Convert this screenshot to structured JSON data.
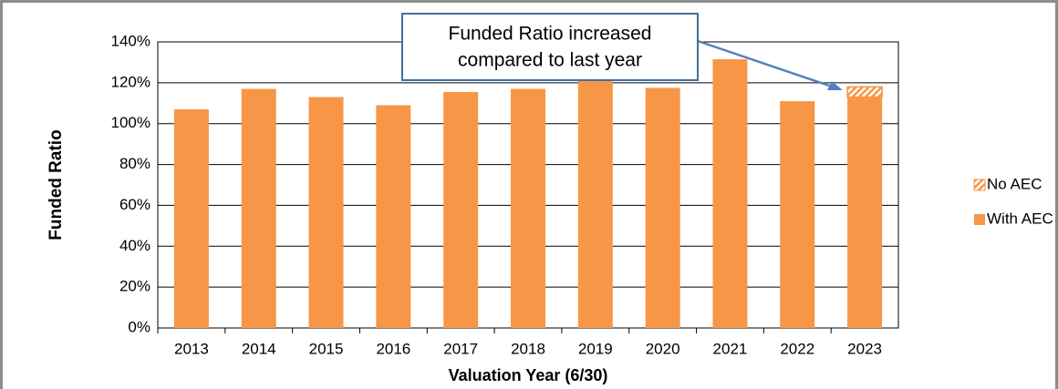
{
  "chart_data": {
    "type": "stacked_bar",
    "categories": [
      "2013",
      "2014",
      "2015",
      "2016",
      "2017",
      "2018",
      "2019",
      "2020",
      "2021",
      "2022",
      "2023"
    ],
    "series": [
      {
        "name": "With AEC",
        "color": "#f79646",
        "values": [
          107,
          117,
          113,
          109,
          115.5,
          117,
          121,
          117.5,
          131.5,
          111,
          113
        ]
      },
      {
        "name": "No AEC",
        "color": "#f79646",
        "hatch": true,
        "values": [
          null,
          null,
          null,
          null,
          null,
          null,
          null,
          null,
          null,
          null,
          5
        ]
      }
    ],
    "ylim": [
      0,
      140
    ],
    "yticks": [
      {
        "value": 0,
        "label": "0%"
      },
      {
        "value": 20,
        "label": "20%"
      },
      {
        "value": 40,
        "label": "40%"
      },
      {
        "value": 60,
        "label": "60%"
      },
      {
        "value": 80,
        "label": "80%"
      },
      {
        "value": 100,
        "label": "100%"
      },
      {
        "value": 120,
        "label": "120%"
      },
      {
        "value": 140,
        "label": "140%"
      }
    ],
    "grid": true,
    "ylabel": "Funded Ratio",
    "xlabel": "Valuation Year (6/30)",
    "annotation": [
      "Funded Ratio increased",
      "compared to last year"
    ],
    "legend": "right"
  }
}
